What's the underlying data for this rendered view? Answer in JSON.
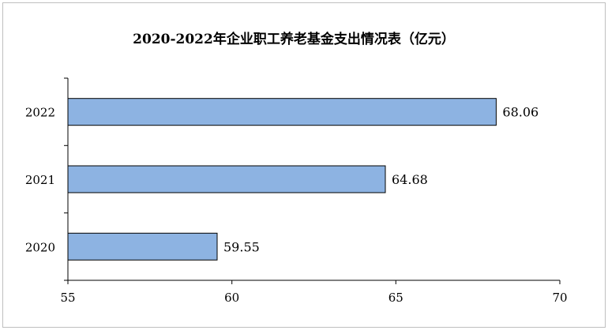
{
  "chart_data": {
    "type": "bar",
    "orientation": "horizontal",
    "title": "2020-2022年企业职工养老基金支出情况表（亿元）",
    "categories": [
      "2022",
      "2021",
      "2020"
    ],
    "values": [
      68.06,
      64.68,
      59.55
    ],
    "value_labels": [
      "68.06",
      "64.68",
      "59.55"
    ],
    "xlim": [
      55,
      70
    ],
    "xticks": [
      55,
      60,
      65,
      70
    ],
    "xtick_labels": [
      "55",
      "60",
      "65",
      "70"
    ],
    "xlabel": "",
    "ylabel": "",
    "grid": false,
    "legend": "none",
    "colors": {
      "bar_fill": "#8db3e2",
      "bar_stroke": "#000000",
      "axis": "#000000",
      "background": "#ffffff",
      "frame": "#bfbfbf"
    }
  }
}
